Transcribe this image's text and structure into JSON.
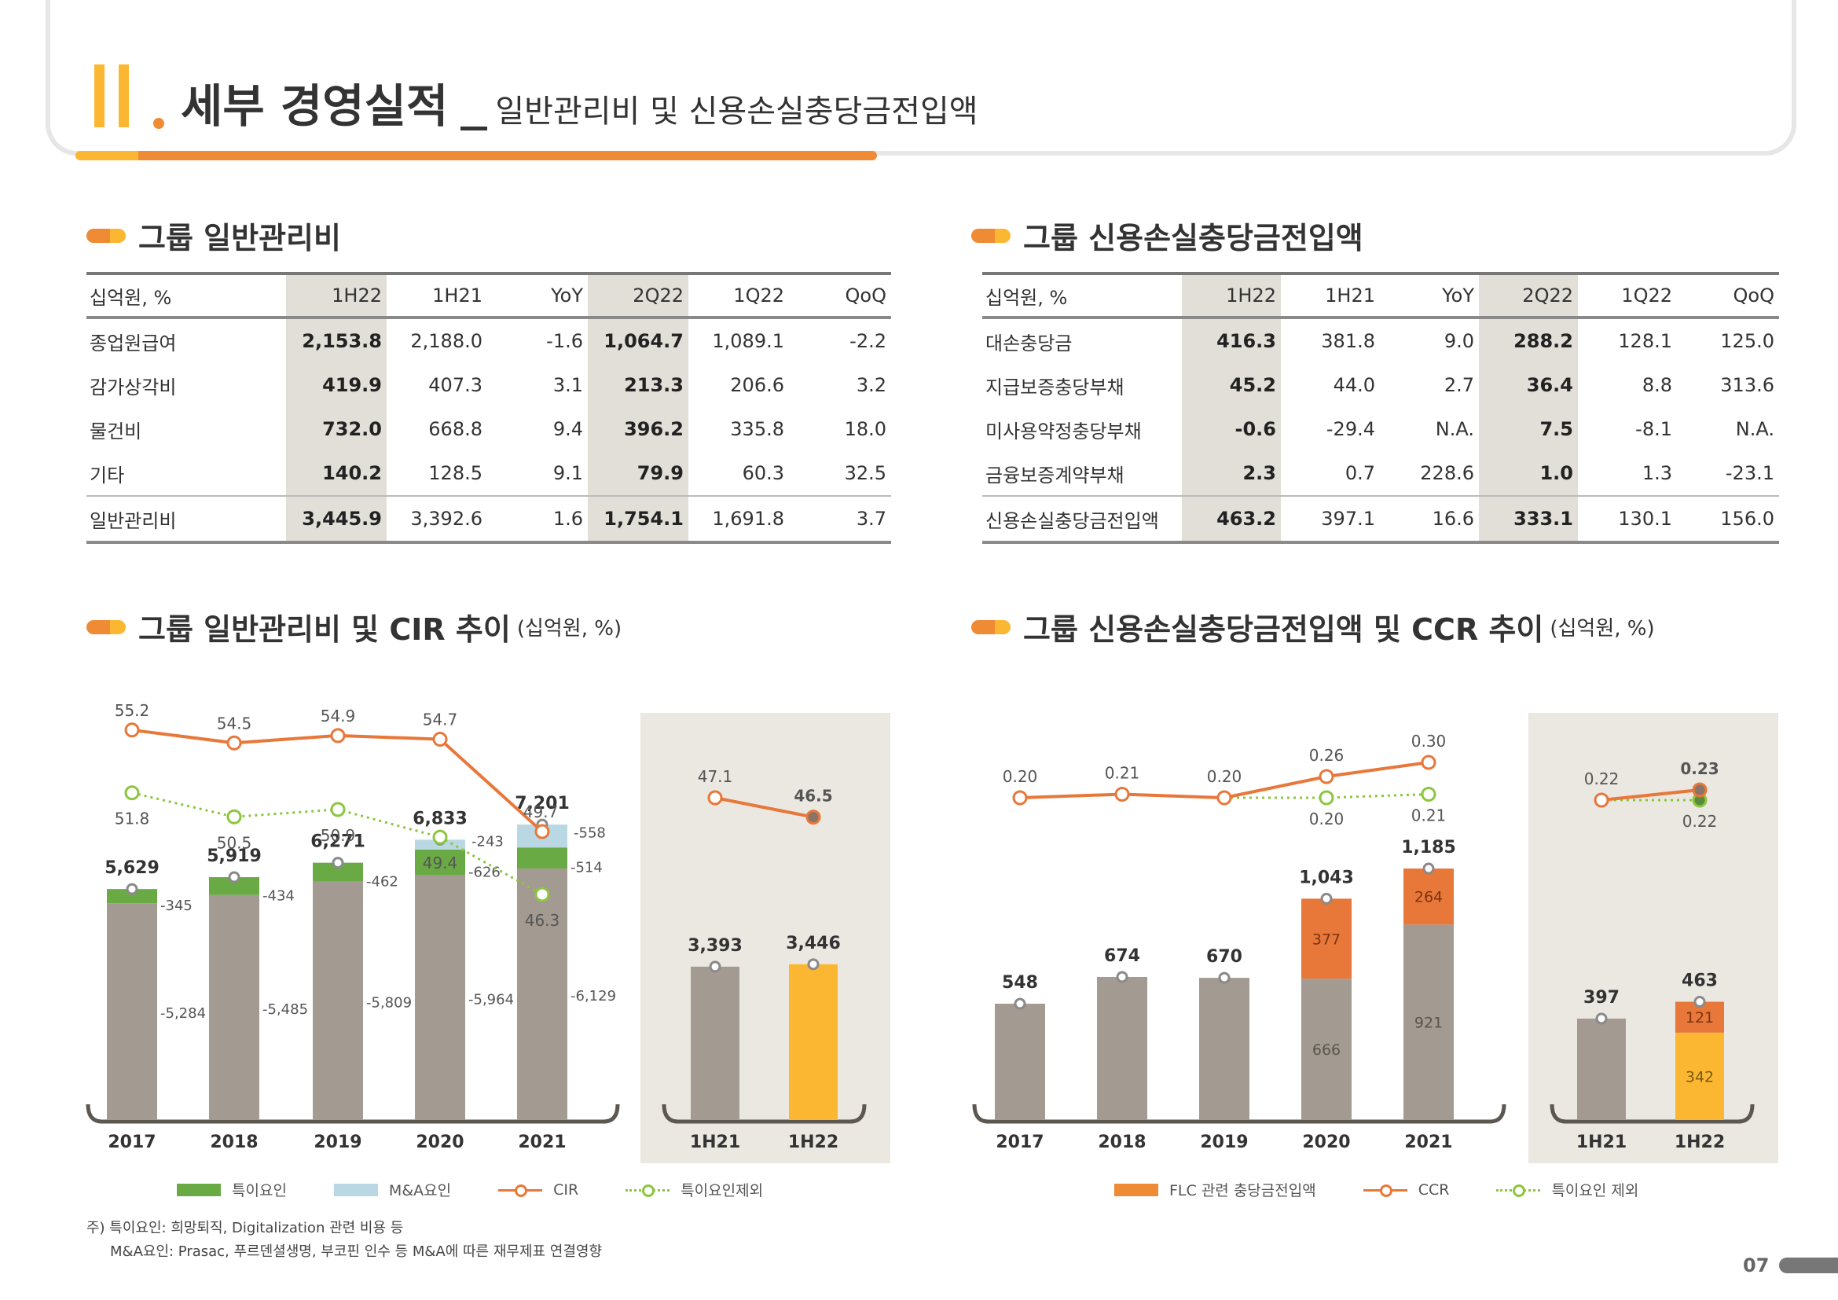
{
  "header": {
    "roman": "II",
    "title": "세부 경영실적",
    "subtitle": "일반관리비 및 신용손실충당금전입액"
  },
  "sections": {
    "ga_table_title": "그룹 일반관리비",
    "llp_table_title": "그룹 신용손실충당금전입액",
    "ga_chart_title": "그룹 일반관리비 및 CIR 추이",
    "ga_chart_unit": "(십억원, %)",
    "llp_chart_title": "그룹 신용손실충당금전입액 및 CCR 추이",
    "llp_chart_unit": "(십억원, %)"
  },
  "ga_table": {
    "headers": [
      "십억원, %",
      "1H22",
      "1H21",
      "YoY",
      "2Q22",
      "1Q22",
      "QoQ"
    ],
    "rows": [
      [
        "종업원급여",
        "2,153.8",
        "2,188.0",
        "-1.6",
        "1,064.7",
        "1,089.1",
        "-2.2"
      ],
      [
        "감가상각비",
        "419.9",
        "407.3",
        "3.1",
        "213.3",
        "206.6",
        "3.2"
      ],
      [
        "물건비",
        "732.0",
        "668.8",
        "9.4",
        "396.2",
        "335.8",
        "18.0"
      ],
      [
        "기타",
        "140.2",
        "128.5",
        "9.1",
        "79.9",
        "60.3",
        "32.5"
      ],
      [
        "일반관리비",
        "3,445.9",
        "3,392.6",
        "1.6",
        "1,754.1",
        "1,691.8",
        "3.7"
      ]
    ]
  },
  "llp_table": {
    "headers": [
      "십억원, %",
      "1H22",
      "1H21",
      "YoY",
      "2Q22",
      "1Q22",
      "QoQ"
    ],
    "rows": [
      [
        "대손충당금",
        "416.3",
        "381.8",
        "9.0",
        "288.2",
        "128.1",
        "125.0"
      ],
      [
        "지급보증충당부채",
        "45.2",
        "44.0",
        "2.7",
        "36.4",
        "8.8",
        "313.6"
      ],
      [
        "미사용약정충당부채",
        "-0.6",
        "-29.4",
        "N.A.",
        "7.5",
        "-8.1",
        "N.A."
      ],
      [
        "금융보증계약부채",
        "2.3",
        "0.7",
        "228.6",
        "1.0",
        "1.3",
        "-23.1"
      ],
      [
        "신용손실충당금전입액",
        "463.2",
        "397.1",
        "16.6",
        "333.1",
        "130.1",
        "156.0"
      ]
    ]
  },
  "chart_data": [
    {
      "type": "bar",
      "stacked": true,
      "categories": [
        "2017",
        "2018",
        "2019",
        "2020",
        "2021"
      ],
      "series": [
        {
          "name": "base",
          "values": [
            5284,
            5485,
            5809,
            5964,
            6129
          ]
        },
        {
          "name": "특이요인",
          "values": [
            345,
            434,
            462,
            626,
            514
          ]
        },
        {
          "name": "M&A요인",
          "values": [
            0,
            0,
            0,
            243,
            558
          ]
        }
      ],
      "totals": [
        5629,
        5919,
        6271,
        6833,
        7201
      ],
      "lines": [
        {
          "name": "CIR",
          "values": [
            55.2,
            54.5,
            54.9,
            54.7,
            49.7
          ]
        },
        {
          "name": "특이요인제외",
          "values": [
            51.8,
            50.5,
            50.9,
            49.4,
            46.3
          ]
        }
      ],
      "colors": {
        "base": "#a39a91",
        "special": "#6aaa45",
        "mna": "#b9d8e4",
        "cir": "#e8773a",
        "excl": "#8cc63f"
      }
    },
    {
      "type": "bar",
      "categories": [
        "1H21",
        "1H22"
      ],
      "values": [
        3393,
        3446
      ],
      "lines": [
        {
          "name": "CIR",
          "values": [
            47.1,
            46.5
          ]
        }
      ],
      "colors": {
        "base": "#a39a91",
        "highlight": "#fbb731",
        "cir": "#e8773a",
        "panel": "#ebe7e1"
      }
    },
    {
      "type": "bar",
      "stacked": true,
      "categories": [
        "2017",
        "2018",
        "2019",
        "2020",
        "2021"
      ],
      "series": [
        {
          "name": "base",
          "values": [
            548,
            674,
            670,
            666,
            921
          ]
        },
        {
          "name": "FLC 관련 충당금전입액",
          "values": [
            0,
            0,
            0,
            377,
            264
          ]
        }
      ],
      "totals": [
        548,
        674,
        670,
        1043,
        1185
      ],
      "lines": [
        {
          "name": "CCR",
          "values": [
            0.2,
            0.21,
            0.2,
            0.26,
            0.3
          ]
        },
        {
          "name": "특이요인 제외",
          "values": [
            null,
            null,
            0.2,
            0.2,
            0.21
          ]
        }
      ],
      "line_labels": {
        "CCR": [
          "0.20",
          "0.21",
          "0.20",
          "0.26",
          "0.30"
        ],
        "특이요인 제외": [
          "",
          "",
          "",
          "0.20",
          "0.21"
        ]
      },
      "colors": {
        "base": "#a39a91",
        "flc": "#e8773a",
        "ccr": "#e8773a",
        "excl": "#8cc63f"
      }
    },
    {
      "type": "bar",
      "stacked": true,
      "categories": [
        "1H21",
        "1H22"
      ],
      "series": [
        {
          "name": "base",
          "values": [
            397,
            342
          ]
        },
        {
          "name": "FLC 관련 충당금전입액",
          "values": [
            0,
            121
          ]
        }
      ],
      "totals": [
        397,
        463
      ],
      "lines": [
        {
          "name": "CCR",
          "values": [
            0.22,
            0.23
          ]
        },
        {
          "name": "특이요인 제외",
          "values": [
            0.22,
            0.22
          ]
        }
      ],
      "line_labels": {
        "CCR": [
          "0.22",
          "0.23"
        ],
        "특이요인 제외": [
          "",
          "0.22"
        ]
      },
      "colors": {
        "base": "#a39a91",
        "highlight": "#fbb731",
        "flc": "#e8773a",
        "panel": "#ebe7e1"
      }
    }
  ],
  "legend_left": [
    {
      "label": "특이요인",
      "kind": "box",
      "color": "#6aaa45"
    },
    {
      "label": "M&A요인",
      "kind": "box",
      "color": "#b9d8e4"
    },
    {
      "label": "CIR",
      "kind": "line",
      "color": "#e8773a"
    },
    {
      "label": "특이요인제외",
      "kind": "dotted",
      "color": "#8cc63f"
    }
  ],
  "legend_right": [
    {
      "label": "FLC 관련 충당금전입액",
      "kind": "box",
      "color": "#ef8a35"
    },
    {
      "label": "CCR",
      "kind": "line",
      "color": "#e8773a"
    },
    {
      "label": "특이요인 제외",
      "kind": "dotted",
      "color": "#8cc63f"
    }
  ],
  "notes": {
    "line1": "주) 특이요인: 희망퇴직, Digitalization 관련 비용 등",
    "line2": "M&A요인: Prasac, 푸르덴셜생명, 부코핀 인수 등 M&A에 따른 재무제표 연결영향"
  },
  "page_number": "07"
}
